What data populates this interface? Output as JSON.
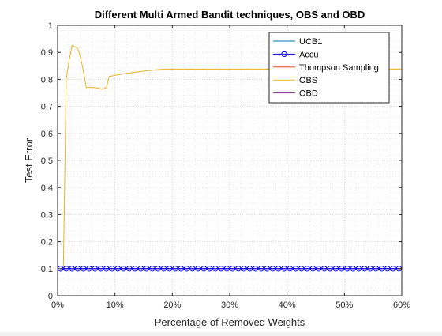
{
  "chart_data": {
    "type": "line",
    "title": "Different Multi Armed Bandit techniques, OBS and OBD",
    "xlabel": "Percentage of Removed Weights",
    "ylabel": "Test Error",
    "xlim": [
      0,
      60
    ],
    "ylim": [
      0,
      1
    ],
    "grid": true,
    "minor_grid": true,
    "legend_position": "top-right",
    "xticks": [
      0,
      10,
      20,
      30,
      40,
      50,
      60
    ],
    "xtick_labels": [
      "0%",
      "10%",
      "20%",
      "30%",
      "40%",
      "50%",
      "60%"
    ],
    "yticks": [
      0,
      0.1,
      0.2,
      0.3,
      0.4,
      0.5,
      0.6,
      0.7,
      0.8,
      0.9,
      1
    ],
    "ytick_labels": [
      "0",
      "0.1",
      "0.2",
      "0.3",
      "0.4",
      "0.5",
      "0.6",
      "0.7",
      "0.8",
      "0.9",
      "1"
    ],
    "series": [
      {
        "name": "UCB1",
        "color": "#0072bd",
        "marker": "none",
        "x": [
          0.5,
          60
        ],
        "y": [
          0.1,
          0.1
        ]
      },
      {
        "name": "Accu",
        "color": "#0000ff",
        "marker": "circle",
        "x": [
          0.5,
          1.5,
          2.5,
          3.5,
          4.5,
          5.5,
          6.5,
          7.5,
          8.5,
          9.5,
          10.5,
          11.5,
          12.5,
          13.5,
          14.5,
          15.5,
          16.5,
          17.5,
          18.5,
          19.5,
          20.5,
          21.5,
          22.5,
          23.5,
          24.5,
          25.5,
          26.5,
          27.5,
          28.5,
          29.5,
          30.5,
          31.5,
          32.5,
          33.5,
          34.5,
          35.5,
          36.5,
          37.5,
          38.5,
          39.5,
          40.5,
          41.5,
          42.5,
          43.5,
          44.5,
          45.5,
          46.5,
          47.5,
          48.5,
          49.5,
          50.5,
          51.5,
          52.5,
          53.5,
          54.5,
          55.5,
          56.5,
          57.5,
          58.5,
          59.5
        ],
        "y": [
          0.1,
          0.1,
          0.1,
          0.1,
          0.1,
          0.1,
          0.1,
          0.1,
          0.1,
          0.1,
          0.1,
          0.1,
          0.1,
          0.1,
          0.1,
          0.1,
          0.1,
          0.1,
          0.1,
          0.1,
          0.1,
          0.1,
          0.1,
          0.1,
          0.1,
          0.1,
          0.1,
          0.1,
          0.1,
          0.1,
          0.1,
          0.1,
          0.1,
          0.1,
          0.1,
          0.1,
          0.1,
          0.1,
          0.1,
          0.1,
          0.1,
          0.1,
          0.1,
          0.1,
          0.1,
          0.1,
          0.1,
          0.1,
          0.1,
          0.1,
          0.1,
          0.1,
          0.1,
          0.1,
          0.1,
          0.1,
          0.1,
          0.1,
          0.1,
          0.1
        ]
      },
      {
        "name": "Thompson Sampling",
        "color": "#d95319",
        "marker": "none",
        "x": [
          0.5,
          60
        ],
        "y": [
          0.1,
          0.1
        ]
      },
      {
        "name": "OBS",
        "color": "#edb120",
        "marker": "none",
        "x": [
          0.5,
          1,
          1.5,
          2,
          2.5,
          3,
          3.5,
          4,
          4.5,
          5,
          6,
          7,
          7.5,
          8,
          8.5,
          9,
          10,
          12,
          14,
          16,
          18,
          20,
          25,
          30,
          40,
          50,
          60
        ],
        "y": [
          0.1,
          0.1,
          0.8,
          0.87,
          0.925,
          0.92,
          0.915,
          0.88,
          0.83,
          0.77,
          0.77,
          0.768,
          0.765,
          0.765,
          0.77,
          0.81,
          0.815,
          0.822,
          0.828,
          0.833,
          0.837,
          0.838,
          0.838,
          0.838,
          0.838,
          0.838,
          0.838
        ]
      },
      {
        "name": "OBD",
        "color": "#7e2f8e",
        "marker": "none",
        "x": [
          0.5,
          60
        ],
        "y": [
          0.1,
          0.1
        ]
      }
    ]
  }
}
